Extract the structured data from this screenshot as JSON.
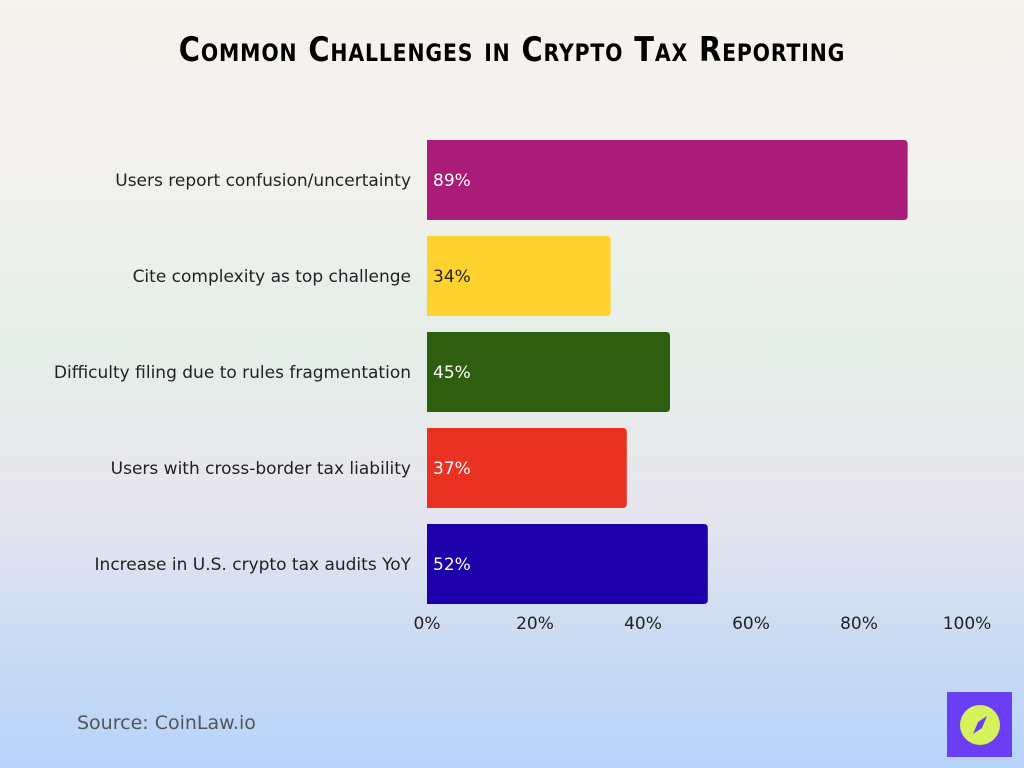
{
  "chart_data": {
    "type": "bar",
    "orientation": "horizontal",
    "title": "Common Challenges in Crypto Tax Reporting",
    "categories": [
      "Users report confusion/uncertainty",
      "Cite complexity as top challenge",
      "Difficulty filing due to rules fragmentation",
      "Users with cross-border tax liability",
      "Increase in U.S. crypto tax audits YoY"
    ],
    "values": [
      89,
      34,
      45,
      37,
      52
    ],
    "data_labels": [
      "89%",
      "34%",
      "45%",
      "37%",
      "52%"
    ],
    "colors": [
      "#a91c78",
      "#fed330",
      "#305e10",
      "#e93222",
      "#1d00aa"
    ],
    "label_colors": [
      "#ffffff",
      "#222222",
      "#ffffff",
      "#ffffff",
      "#ffffff"
    ],
    "xlim": [
      0,
      100
    ],
    "xticks": [
      "0%",
      "20%",
      "40%",
      "60%",
      "80%",
      "100%"
    ],
    "grid": false,
    "legend": "none"
  },
  "source": "Source: CoinLaw.io",
  "logo": {
    "icon": "compass-icon",
    "color": "#6b3df5",
    "accent": "#d6f25a"
  }
}
